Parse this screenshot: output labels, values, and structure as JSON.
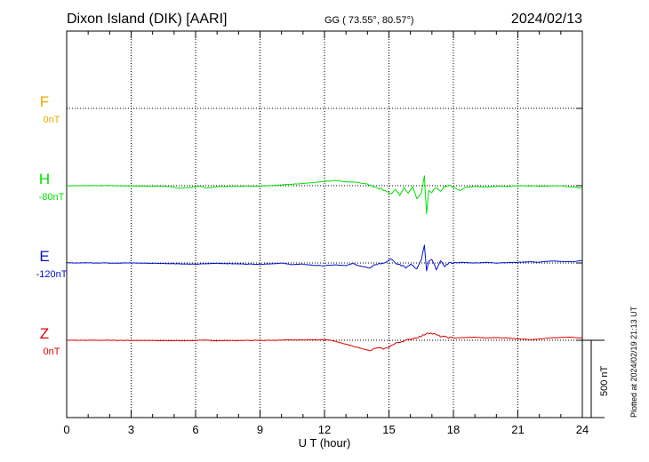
{
  "chart_data": {
    "type": "line",
    "title": "Dixon Island (DIK)  [AARI]",
    "coords": "GG ( 73.55°,  80.57°)",
    "date": "2024/02/13",
    "plotted_note": "Plotted at 2024/02/19 21:13 UT",
    "xlabel": "U T (hour)",
    "xlim": [
      0,
      24
    ],
    "xticks": [
      "0",
      "3",
      "6",
      "9",
      "12",
      "15",
      "18",
      "21",
      "24"
    ],
    "scale_label": "500 nT",
    "series": [
      {
        "name": "F",
        "baseline_label": "0nT",
        "color": "#f0a800",
        "points": []
      },
      {
        "name": "H",
        "baseline_label": "-80nT",
        "color": "#00e000",
        "points": [
          [
            0,
            0
          ],
          [
            1,
            1
          ],
          [
            2,
            1
          ],
          [
            3,
            -2
          ],
          [
            4,
            -3
          ],
          [
            4.8,
            -5
          ],
          [
            5.3,
            -18
          ],
          [
            5.8,
            -10
          ],
          [
            6.2,
            -3
          ],
          [
            6.5,
            -15
          ],
          [
            7,
            -6
          ],
          [
            8,
            -3
          ],
          [
            9,
            -3
          ],
          [
            9.5,
            2
          ],
          [
            10,
            5
          ],
          [
            10.5,
            10
          ],
          [
            11,
            15
          ],
          [
            11.5,
            20
          ],
          [
            12,
            27
          ],
          [
            12.5,
            33
          ],
          [
            13,
            25
          ],
          [
            13.5,
            22
          ],
          [
            14,
            10
          ],
          [
            14.3,
            -5
          ],
          [
            14.6,
            -20
          ],
          [
            14.9,
            -35
          ],
          [
            15.1,
            -55
          ],
          [
            15.3,
            -25
          ],
          [
            15.5,
            -60
          ],
          [
            15.7,
            -15
          ],
          [
            15.9,
            -45
          ],
          [
            16.1,
            -5
          ],
          [
            16.3,
            -80
          ],
          [
            16.5,
            -50
          ],
          [
            16.65,
            60
          ],
          [
            16.75,
            -180
          ],
          [
            16.85,
            -30
          ],
          [
            17,
            -40
          ],
          [
            17.2,
            -10
          ],
          [
            17.4,
            -35
          ],
          [
            17.6,
            -5
          ],
          [
            17.8,
            0
          ],
          [
            18,
            -10
          ],
          [
            18.3,
            -30
          ],
          [
            18.6,
            -10
          ],
          [
            19,
            -5
          ],
          [
            19.5,
            -10
          ],
          [
            20,
            -3
          ],
          [
            20.5,
            -5
          ],
          [
            21,
            0
          ],
          [
            22,
            -3
          ],
          [
            23,
            0
          ],
          [
            23.5,
            -8
          ],
          [
            24,
            -15
          ]
        ]
      },
      {
        "name": "E",
        "baseline_label": "-120nT",
        "color": "#0010d0",
        "points": [
          [
            0,
            0
          ],
          [
            1,
            1
          ],
          [
            2,
            0
          ],
          [
            3,
            0
          ],
          [
            4,
            -2
          ],
          [
            5,
            -4
          ],
          [
            5.5,
            -7
          ],
          [
            6,
            -8
          ],
          [
            6.5,
            -5
          ],
          [
            7,
            -2
          ],
          [
            8,
            -6
          ],
          [
            9,
            -8
          ],
          [
            9.5,
            -5
          ],
          [
            10,
            -2
          ],
          [
            10.5,
            -10
          ],
          [
            11,
            -8
          ],
          [
            11.5,
            -15
          ],
          [
            12,
            -18
          ],
          [
            12.5,
            -12
          ],
          [
            13,
            -18
          ],
          [
            13.3,
            -2
          ],
          [
            13.6,
            -18
          ],
          [
            13.9,
            -25
          ],
          [
            14.1,
            -30
          ],
          [
            14.3,
            -12
          ],
          [
            14.6,
            -2
          ],
          [
            14.9,
            8
          ],
          [
            15.1,
            30
          ],
          [
            15.3,
            -5
          ],
          [
            15.5,
            -10
          ],
          [
            15.8,
            -30
          ],
          [
            16,
            -5
          ],
          [
            16.3,
            -40
          ],
          [
            16.5,
            20
          ],
          [
            16.65,
            115
          ],
          [
            16.75,
            -55
          ],
          [
            16.85,
            10
          ],
          [
            17,
            20
          ],
          [
            17.2,
            -40
          ],
          [
            17.4,
            10
          ],
          [
            17.6,
            -20
          ],
          [
            17.8,
            0
          ],
          [
            18,
            2
          ],
          [
            18.5,
            3
          ],
          [
            19,
            0
          ],
          [
            19.5,
            4
          ],
          [
            20,
            0
          ],
          [
            20.5,
            3
          ],
          [
            21,
            4
          ],
          [
            21.5,
            8
          ],
          [
            22,
            5
          ],
          [
            22.5,
            12
          ],
          [
            23,
            10
          ],
          [
            23.5,
            8
          ],
          [
            24,
            15
          ]
        ]
      },
      {
        "name": "Z",
        "baseline_label": "0nT",
        "color": "#e00000",
        "points": [
          [
            0,
            0
          ],
          [
            1,
            0
          ],
          [
            2,
            0
          ],
          [
            3,
            -1
          ],
          [
            4,
            -1
          ],
          [
            5,
            -3
          ],
          [
            5.8,
            -3
          ],
          [
            6.4,
            2
          ],
          [
            6.8,
            -3
          ],
          [
            7.5,
            -2
          ],
          [
            8.5,
            -1
          ],
          [
            9.5,
            0
          ],
          [
            10.5,
            2
          ],
          [
            11.5,
            3
          ],
          [
            12,
            5
          ],
          [
            12.3,
            0
          ],
          [
            12.7,
            -15
          ],
          [
            13.1,
            -30
          ],
          [
            13.5,
            -45
          ],
          [
            13.8,
            -55
          ],
          [
            14.1,
            -70
          ],
          [
            14.4,
            -50
          ],
          [
            14.8,
            -55
          ],
          [
            15.1,
            -35
          ],
          [
            15.4,
            -15
          ],
          [
            15.8,
            0
          ],
          [
            16.2,
            15
          ],
          [
            16.5,
            25
          ],
          [
            16.8,
            50
          ],
          [
            17.1,
            40
          ],
          [
            17.4,
            25
          ],
          [
            17.7,
            20
          ],
          [
            18,
            15
          ],
          [
            18.5,
            17
          ],
          [
            19,
            20
          ],
          [
            19.5,
            15
          ],
          [
            20,
            18
          ],
          [
            20.5,
            15
          ],
          [
            21,
            10
          ],
          [
            21.5,
            5
          ],
          [
            22,
            8
          ],
          [
            22.5,
            15
          ],
          [
            23,
            18
          ],
          [
            23.5,
            20
          ],
          [
            24,
            15
          ]
        ]
      }
    ]
  }
}
